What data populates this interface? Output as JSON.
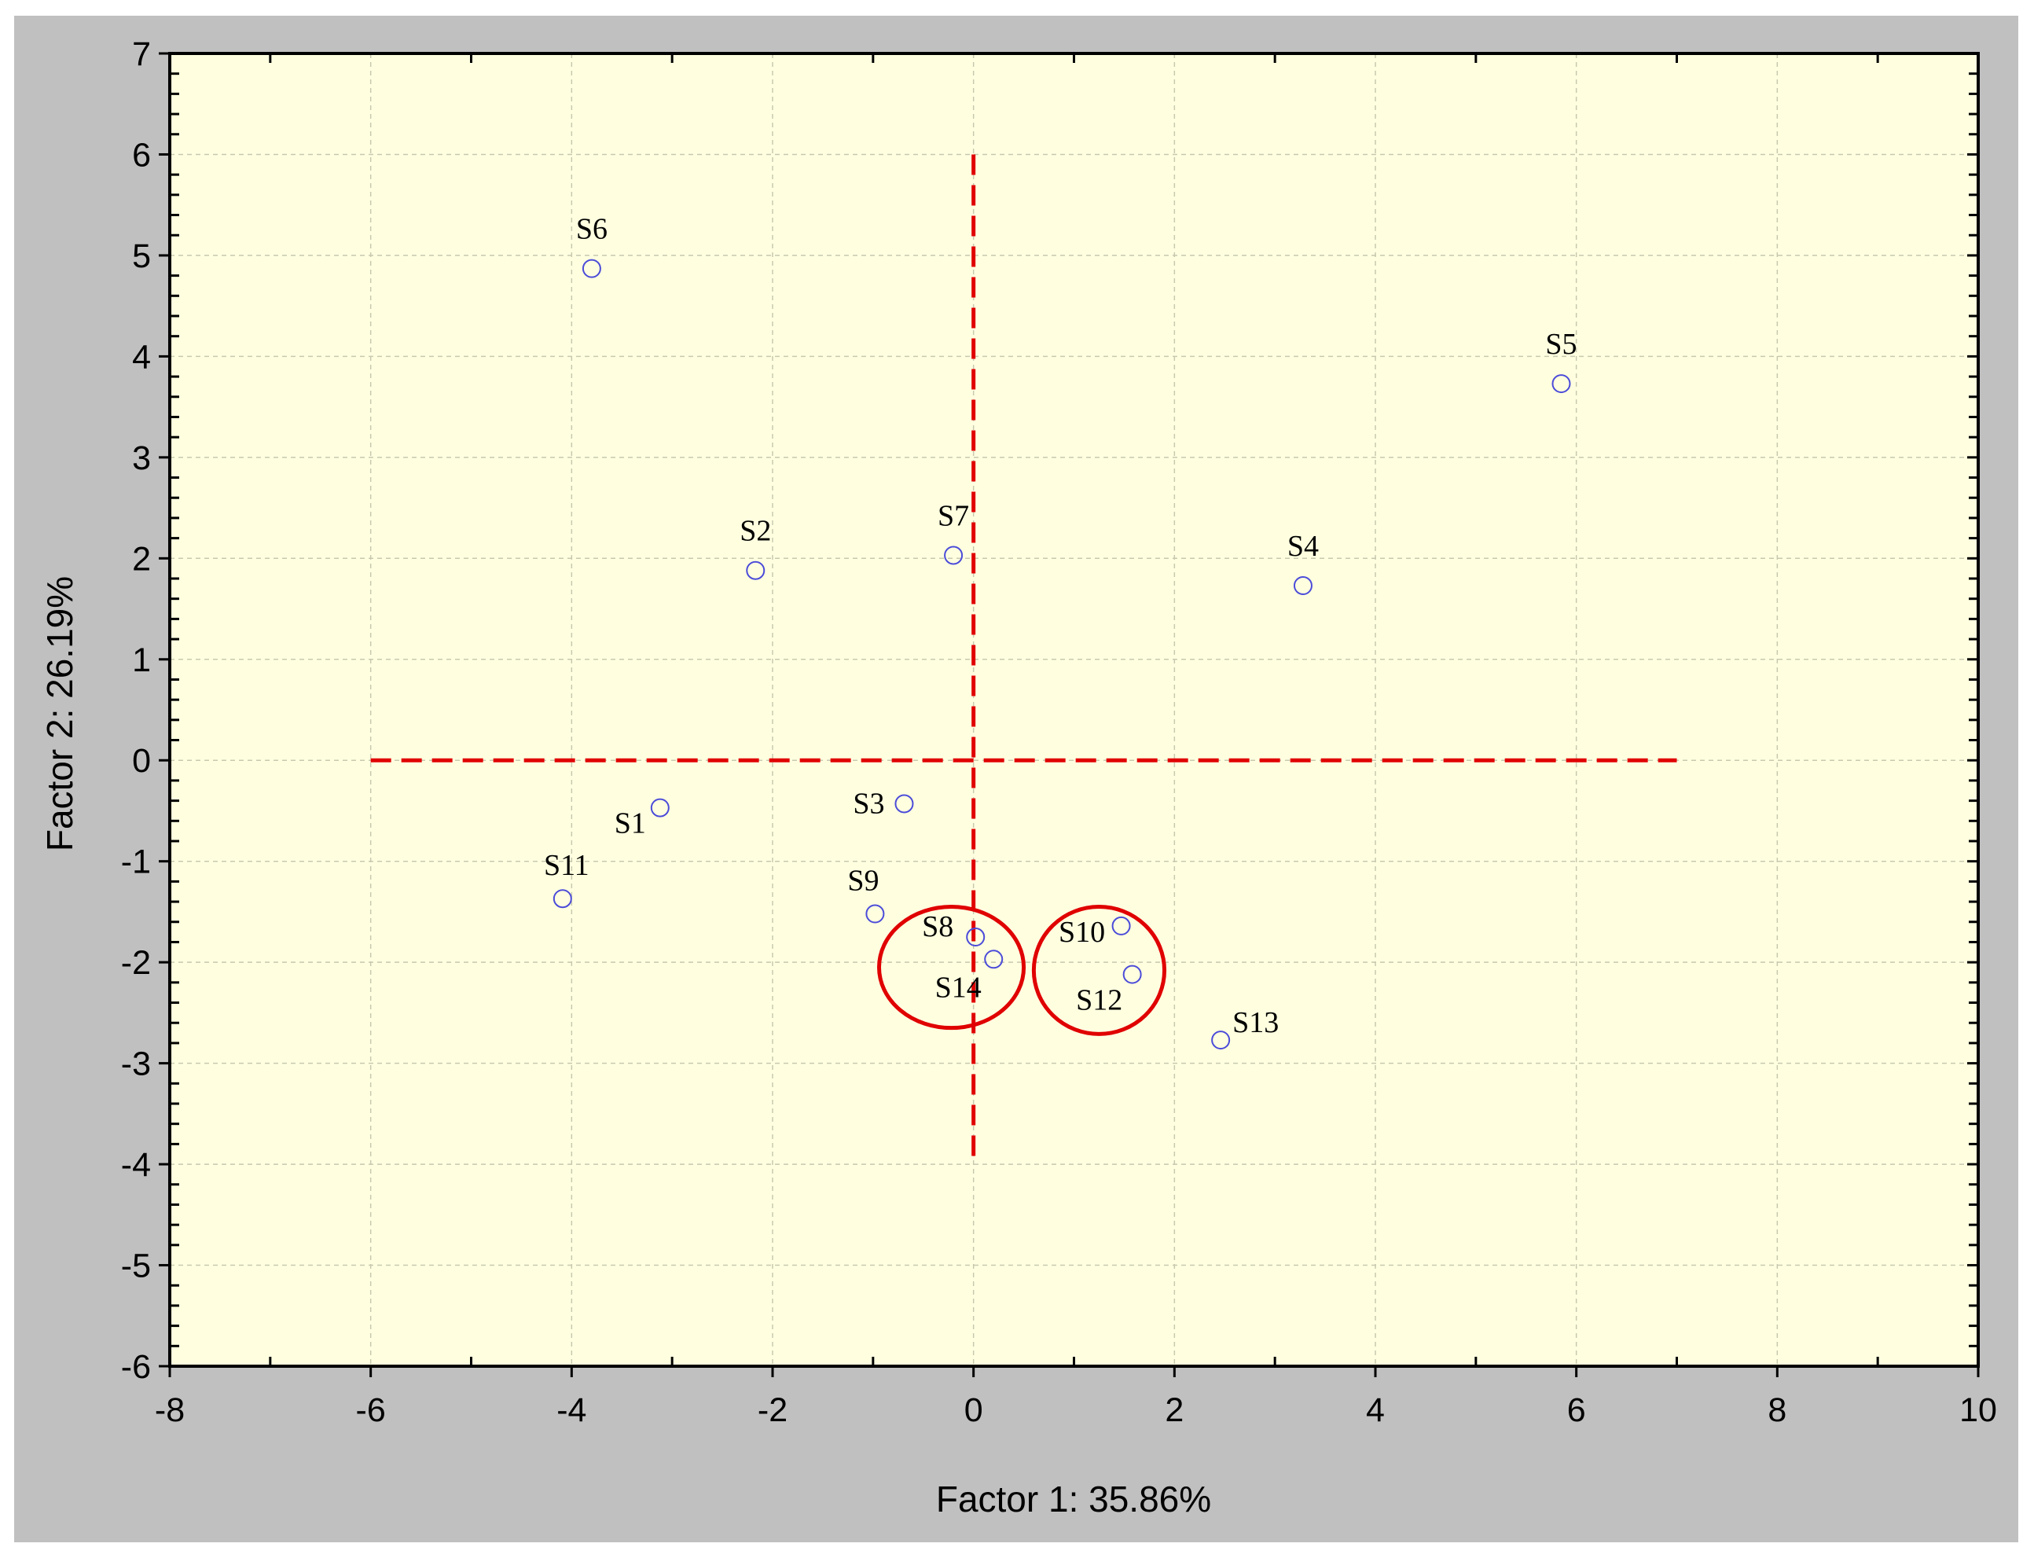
{
  "chart_data": {
    "type": "scatter",
    "title": "",
    "xlabel": "Factor 1: 35.86%",
    "ylabel": "Factor 2: 26.19%",
    "xlim": [
      -8,
      10
    ],
    "ylim": [
      -6,
      7
    ],
    "xticks": [
      -8,
      -6,
      -4,
      -2,
      0,
      2,
      4,
      6,
      8,
      10
    ],
    "yticks": [
      -6,
      -5,
      -4,
      -3,
      -2,
      -1,
      0,
      1,
      2,
      3,
      4,
      5,
      6,
      7
    ],
    "grid": true,
    "points": [
      {
        "label": "S1",
        "x": -3.12,
        "y": -0.47
      },
      {
        "label": "S2",
        "x": -2.17,
        "y": 1.88
      },
      {
        "label": "S3",
        "x": -0.69,
        "y": -0.43
      },
      {
        "label": "S4",
        "x": 3.28,
        "y": 1.73
      },
      {
        "label": "S5",
        "x": 5.85,
        "y": 3.73
      },
      {
        "label": "S6",
        "x": -3.8,
        "y": 4.87
      },
      {
        "label": "S7",
        "x": -0.2,
        "y": 2.03
      },
      {
        "label": "S8",
        "x": 0.02,
        "y": -1.75
      },
      {
        "label": "S9",
        "x": -0.98,
        "y": -1.52
      },
      {
        "label": "S10",
        "x": 1.47,
        "y": -1.64
      },
      {
        "label": "S11",
        "x": -4.09,
        "y": -1.37
      },
      {
        "label": "S12",
        "x": 1.58,
        "y": -2.12
      },
      {
        "label": "S13",
        "x": 2.46,
        "y": -2.77
      },
      {
        "label": "S14",
        "x": 0.2,
        "y": -1.97
      }
    ],
    "reference_lines": [
      {
        "orientation": "horizontal",
        "value": 0,
        "from": -6,
        "to": 7,
        "style": "dashed",
        "color": "#e00000"
      },
      {
        "orientation": "vertical",
        "value": 0,
        "from": -4,
        "to": 6,
        "style": "dashed",
        "color": "#e00000"
      }
    ],
    "highlight_ellipses": [
      {
        "cx": -0.22,
        "cy": -2.05,
        "rx": 0.72,
        "ry": 0.6,
        "members": [
          "S8",
          "S14"
        ]
      },
      {
        "cx": 1.25,
        "cy": -2.08,
        "rx": 0.65,
        "ry": 0.63,
        "members": [
          "S10",
          "S12"
        ]
      }
    ],
    "colors": {
      "plot_background": "#ffffe0",
      "frame_background": "#c0c0c0",
      "marker": "#4b4bd9",
      "reference": "#e00000"
    }
  }
}
